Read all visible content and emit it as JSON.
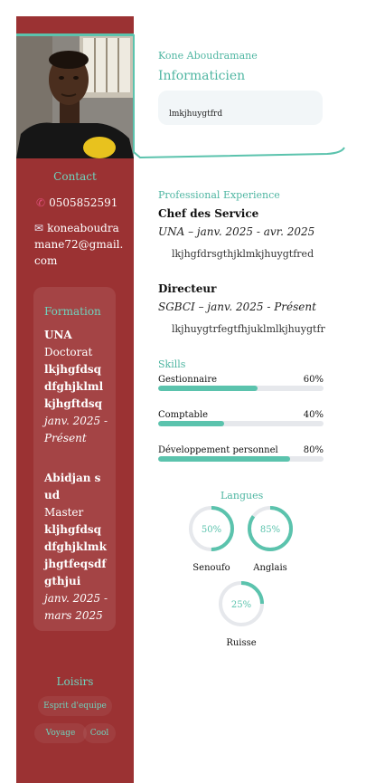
{
  "header": {
    "name": "Kone Aboudramane",
    "job_title": "Informaticien",
    "summary": "lmkjhuygtfrd"
  },
  "contact": {
    "title": "Contact",
    "phone": "0505852591",
    "email": "koneaboudramane72@gmail.com",
    "phone_icon": "phone-icon",
    "email_icon": "envelope-icon"
  },
  "formation": {
    "title": "Formation",
    "items": [
      {
        "school": "UNA",
        "degree": "Doctorat",
        "description": "lkjhgfdsqdfghjklmlkjhgftdsq",
        "dates": "janv. 2025 - Présent"
      },
      {
        "school": "Abidjan sud",
        "degree": "Master",
        "description": "kljhgfdsqdfghjklmkjhgtfeqsdfgthjui",
        "dates": "janv. 2025 - mars 2025"
      }
    ]
  },
  "loisirs": {
    "title": "Loisirs",
    "items": [
      "Esprit d'equipe",
      "Voyage",
      "Cool"
    ]
  },
  "experience": {
    "title": "Professional Experience",
    "items": [
      {
        "role": "Chef des Service",
        "meta": "UNA – janv. 2025 - avr. 2025",
        "description": "lkjhgfdrsgthjklmkjhuygtfred"
      },
      {
        "role": "Directeur",
        "meta": "SGBCI – janv. 2025 - Présent",
        "description": "lkjhuygtrfegtfhjuklmlkjhuygtfr"
      }
    ]
  },
  "skills": {
    "title": "Skills",
    "items": [
      {
        "name": "Gestionnaire",
        "percent_label": "60%",
        "value": 60
      },
      {
        "name": "Comptable",
        "percent_label": "40%",
        "value": 40
      },
      {
        "name": "Développement personnel",
        "percent_label": "80%",
        "value": 80
      }
    ]
  },
  "langues": {
    "title": "Langues",
    "items": [
      {
        "name": "Senoufo",
        "percent_label": "50%",
        "value": 50
      },
      {
        "name": "Anglais",
        "percent_label": "85%",
        "value": 85
      },
      {
        "name": "Ruisse",
        "percent_label": "25%",
        "value": 25
      }
    ]
  },
  "colors": {
    "sidebar": "#9b3233",
    "accent": "#5bc3ad",
    "track": "#e6e8ec"
  }
}
